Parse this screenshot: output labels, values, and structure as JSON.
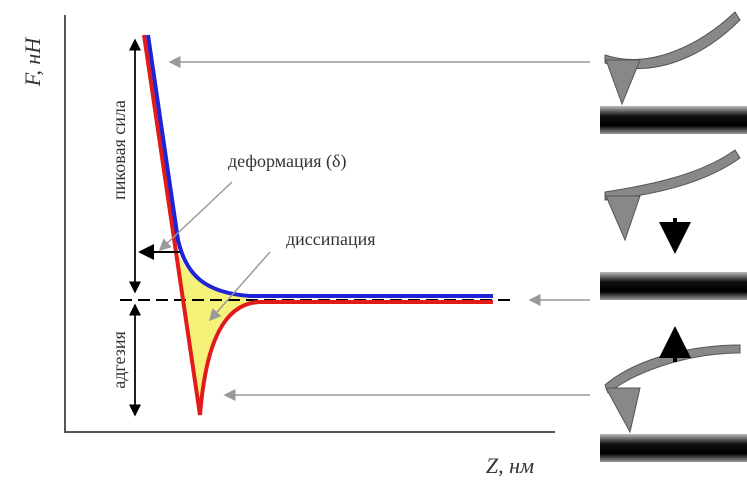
{
  "axes": {
    "y_label": "F, нН",
    "x_label": "Z, нм"
  },
  "annotations": {
    "peak_force": "пиковая сила",
    "adhesion": "адгезия",
    "deformation": "деформация (δ)",
    "dissipation": "диссипация"
  }
}
